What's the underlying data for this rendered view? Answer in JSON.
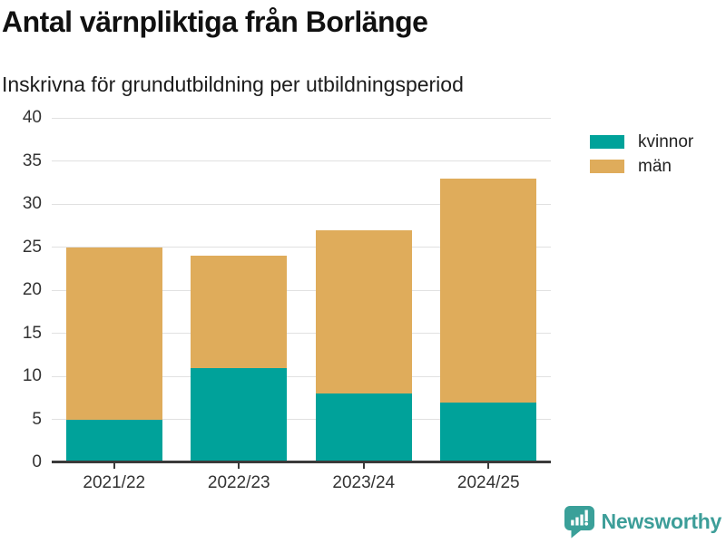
{
  "header": {
    "title": "Antal värnpliktiga från Borlänge",
    "subtitle": "Inskrivna för grundutbildning per utbildningsperiod"
  },
  "chart_data": {
    "type": "bar",
    "stacked": true,
    "title": "Antal värnpliktiga från Borlänge",
    "subtitle": "Inskrivna för grundutbildning per utbildningsperiod",
    "categories": [
      "2021/22",
      "2022/23",
      "2023/24",
      "2024/25"
    ],
    "series": [
      {
        "name": "kvinnor",
        "color": "#00a29a",
        "values": [
          5,
          11,
          8,
          7
        ]
      },
      {
        "name": "män",
        "color": "#dfac5b",
        "values": [
          20,
          13,
          19,
          26
        ]
      }
    ],
    "stack_totals": [
      25,
      24,
      27,
      33
    ],
    "xlabel": "",
    "ylabel": "",
    "ylim": [
      0,
      40
    ],
    "yticks": [
      0,
      5,
      10,
      15,
      20,
      25,
      30,
      35,
      40
    ],
    "grid": true,
    "legend_position": "right-top"
  },
  "footer": {
    "brand": "Newsworthy"
  },
  "colors": {
    "kvinnor": "#00a29a",
    "men": "#dfac5b",
    "brand": "#3d9e99",
    "axis": "#3a3a3a",
    "grid": "#e1e1e1",
    "text": "#333333"
  }
}
